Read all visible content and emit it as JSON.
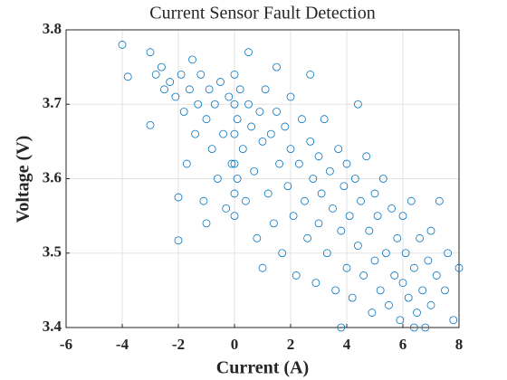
{
  "chart_data": {
    "type": "scatter",
    "title": "Current Sensor Fault Detection",
    "x_label": "Current (A)",
    "y_label": "Voltage (V)",
    "color": "#0072BD",
    "grid": true,
    "xlim": [
      -6,
      8
    ],
    "ylim": [
      3.4,
      3.8
    ],
    "xticks": [
      -6,
      -4,
      -2,
      0,
      2,
      4,
      6,
      8
    ],
    "yticks": [
      3.4,
      3.5,
      3.6,
      3.7,
      3.8
    ],
    "x": [
      -4,
      -3.8,
      -3,
      -3,
      -2.8,
      -2.6,
      -2.5,
      -2.3,
      -2.1,
      -2,
      -2,
      -1.9,
      -1.8,
      -1.7,
      -1.6,
      -1.5,
      -1.4,
      -1.3,
      -1.2,
      -1.1,
      -1,
      -1,
      -0.9,
      -0.8,
      -0.7,
      -0.6,
      -0.5,
      -0.4,
      -0.3,
      -0.2,
      -0.1,
      0,
      0,
      0,
      0,
      0,
      0,
      0.1,
      0.1,
      0.2,
      0.3,
      0.4,
      0.5,
      0.6,
      0.7,
      0.8,
      0.9,
      1,
      1,
      1.1,
      1.2,
      1.3,
      1.4,
      1.5,
      1.6,
      1.7,
      1.8,
      1.9,
      2,
      2,
      2.1,
      2.2,
      2.3,
      2.4,
      2.5,
      2.6,
      2.7,
      2.8,
      2.9,
      3,
      3,
      3.1,
      3.2,
      3.3,
      3.4,
      3.5,
      3.6,
      3.7,
      3.8,
      3.9,
      4,
      4,
      4.1,
      4.2,
      4.3,
      4.4,
      4.5,
      4.6,
      4.7,
      4.8,
      4.9,
      5,
      5,
      5.1,
      5.2,
      5.3,
      5.4,
      5.5,
      5.6,
      5.7,
      5.8,
      5.9,
      6,
      6,
      6.1,
      6.2,
      6.3,
      6.4,
      6.5,
      6.6,
      6.7,
      6.8,
      6.9,
      7,
      7,
      7.2,
      7.3,
      7.5,
      7.6,
      7.8,
      8,
      3.8,
      6.4,
      4.4,
      2.7,
      1.5,
      0.5
    ],
    "values": [
      3.78,
      3.737,
      3.77,
      3.672,
      3.74,
      3.75,
      3.72,
      3.73,
      3.71,
      3.575,
      3.517,
      3.74,
      3.69,
      3.62,
      3.72,
      3.76,
      3.66,
      3.7,
      3.74,
      3.57,
      3.68,
      3.54,
      3.72,
      3.64,
      3.7,
      3.6,
      3.73,
      3.66,
      3.56,
      3.71,
      3.62,
      3.74,
      3.7,
      3.66,
      3.62,
      3.58,
      3.55,
      3.68,
      3.6,
      3.72,
      3.64,
      3.57,
      3.7,
      3.67,
      3.61,
      3.52,
      3.69,
      3.65,
      3.48,
      3.72,
      3.58,
      3.66,
      3.54,
      3.69,
      3.62,
      3.5,
      3.67,
      3.59,
      3.64,
      3.71,
      3.55,
      3.47,
      3.62,
      3.68,
      3.57,
      3.52,
      3.65,
      3.6,
      3.46,
      3.63,
      3.54,
      3.58,
      3.68,
      3.5,
      3.61,
      3.56,
      3.45,
      3.64,
      3.53,
      3.59,
      3.48,
      3.62,
      3.55,
      3.44,
      3.6,
      3.51,
      3.57,
      3.47,
      3.63,
      3.53,
      3.42,
      3.58,
      3.49,
      3.55,
      3.45,
      3.6,
      3.5,
      3.43,
      3.56,
      3.47,
      3.52,
      3.41,
      3.55,
      3.46,
      3.5,
      3.44,
      3.57,
      3.48,
      3.42,
      3.52,
      3.45,
      3.4,
      3.49,
      3.53,
      3.43,
      3.47,
      3.57,
      3.45,
      3.5,
      3.41,
      3.48,
      3.4,
      3.4,
      3.7,
      3.74,
      3.75,
      3.77
    ]
  }
}
